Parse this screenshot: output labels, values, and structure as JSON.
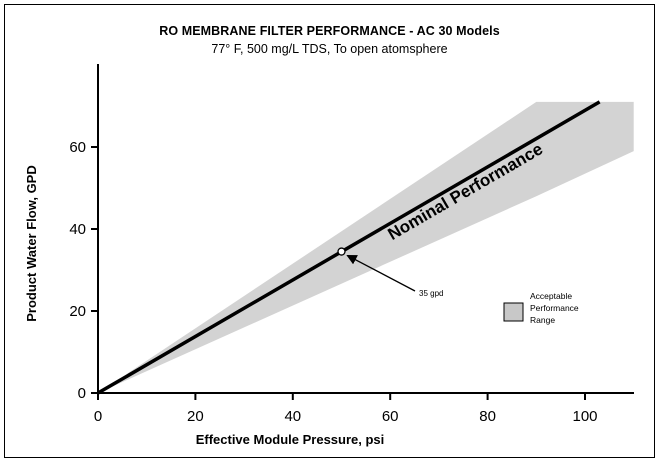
{
  "chart_data": {
    "type": "line",
    "title": "RO MEMBRANE FILTER PERFORMANCE - AC 30 Models",
    "subtitle": "77° F, 500 mg/L TDS, To open atomsphere",
    "xlabel": "Effective Module Pressure, psi",
    "ylabel": "Product Water Flow, GPD",
    "xlim": [
      0,
      110
    ],
    "ylim": [
      0,
      75
    ],
    "x_ticks": [
      0,
      20,
      40,
      60,
      80,
      100
    ],
    "y_ticks": [
      0,
      20,
      40,
      60
    ],
    "grid": false,
    "series": [
      {
        "name": "Nominal Performance",
        "x": [
          0,
          103
        ],
        "y": [
          0,
          71
        ]
      }
    ],
    "band": {
      "x": [
        0,
        90,
        110,
        110
      ],
      "y_upper": [
        0,
        71,
        71,
        71
      ],
      "y_lower": [
        0,
        48,
        59,
        59
      ],
      "color": "#d3d3d3"
    },
    "annotations": [
      {
        "text": "35 gpd",
        "x": 50,
        "y": 34.5
      }
    ],
    "legend": {
      "label_lines": [
        "Acceptable",
        "Performance",
        "Range"
      ],
      "placement": "right",
      "color": "#c8c8c8"
    },
    "colors": {
      "line": "#000000",
      "band": "#d3d3d3"
    }
  }
}
